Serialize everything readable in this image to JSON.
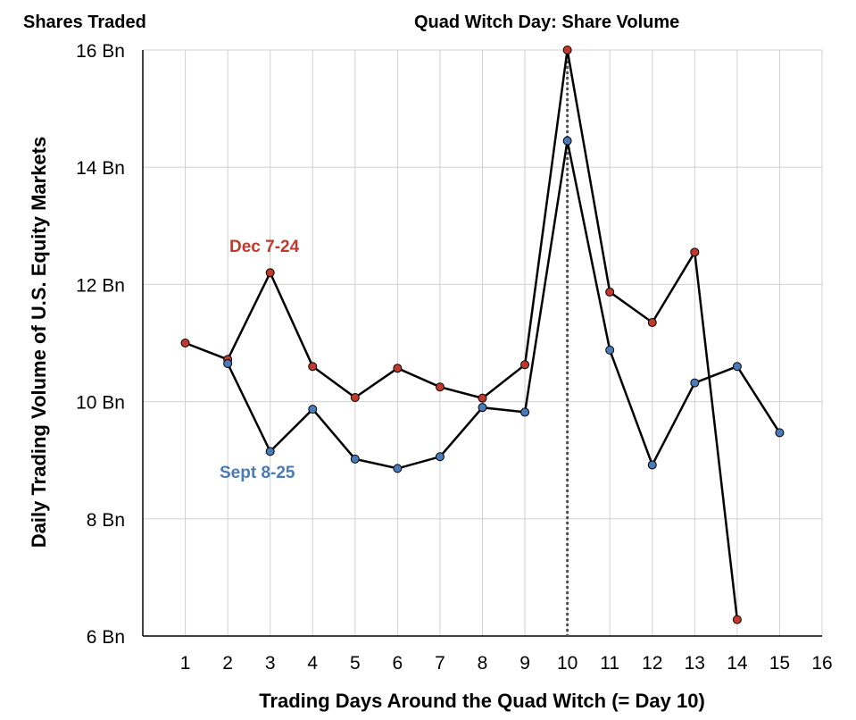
{
  "header": {
    "left_title": "Shares Traded",
    "title": "Quad Witch Day: Share Volume"
  },
  "chart_data": {
    "type": "line",
    "title": "Quad Witch Day: Share Volume",
    "xlabel": "Trading Days Around the Quad Witch (= Day 10)",
    "ylabel": "Daily Trading Volume of U.S. Equity Markets",
    "xlim": [
      0,
      16
    ],
    "ylim": [
      6,
      16
    ],
    "x_ticks": [
      1,
      2,
      3,
      4,
      5,
      6,
      7,
      8,
      9,
      10,
      11,
      12,
      13,
      14,
      15,
      16
    ],
    "x_tick_labels": [
      "1",
      "2",
      "3",
      "4",
      "5",
      "6",
      "7",
      "8",
      "9",
      "10",
      "11",
      "12",
      "13",
      "14",
      "15",
      "16"
    ],
    "y_ticks": [
      6,
      8,
      10,
      12,
      14,
      16
    ],
    "y_tick_labels": [
      "6 Bn",
      "8 Bn",
      "10 Bn",
      "12 Bn",
      "14 Bn",
      "16 Bn"
    ],
    "grid": true,
    "vertical_marker_x": 10,
    "series": [
      {
        "name": "Dec 7-24",
        "color": "#c0392b",
        "x": [
          1,
          2,
          3,
          4,
          5,
          6,
          7,
          8,
          9,
          10,
          11,
          12,
          13,
          14
        ],
        "values": [
          11.0,
          10.72,
          12.2,
          10.6,
          10.07,
          10.57,
          10.25,
          10.06,
          10.63,
          16.0,
          11.87,
          11.35,
          12.55,
          6.28
        ]
      },
      {
        "name": "Sept 8-25",
        "color": "#4a7ab8",
        "x": [
          2,
          3,
          4,
          5,
          6,
          7,
          8,
          9,
          10,
          11,
          12,
          13,
          14,
          15
        ],
        "values": [
          10.65,
          9.15,
          9.87,
          9.02,
          8.86,
          9.06,
          9.9,
          9.82,
          14.45,
          10.88,
          8.92,
          10.32,
          10.6,
          9.47
        ]
      }
    ]
  }
}
